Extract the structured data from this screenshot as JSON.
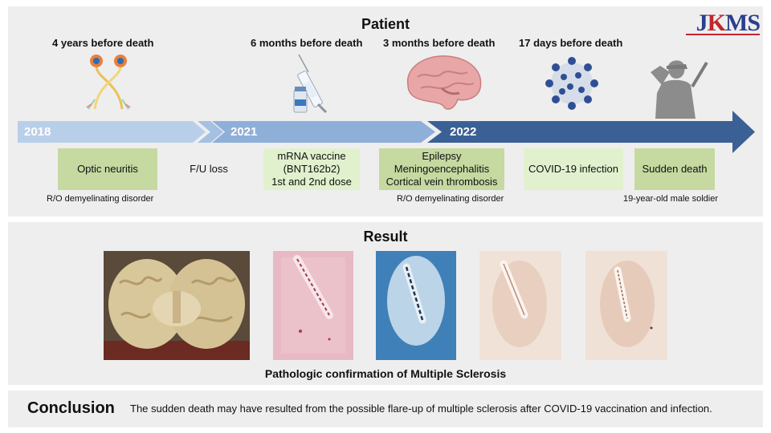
{
  "logo": {
    "part1": "J",
    "part2": "K",
    "part3": "MS"
  },
  "patient": {
    "title": "Patient",
    "time_labels": [
      "4 years before death",
      "6 months before death",
      "3 months before death",
      "17 days before death"
    ],
    "years": [
      "2018",
      "2021",
      "2022"
    ],
    "events": [
      {
        "text": "Optic neuritis",
        "note": "R/O demyelinating disorder"
      },
      {
        "text": "F/U loss"
      },
      {
        "text": "mRNA vaccine\n(BNT162b2)\n1st and 2nd dose"
      },
      {
        "text": "Epilepsy\nMeningoencephalitis\nCortical vein thrombosis",
        "note": "R/O demyelinating disorder"
      },
      {
        "text": "COVID-19 infection"
      },
      {
        "text": "Sudden death",
        "note": "19-year-old male soldier"
      }
    ],
    "icons": [
      "optic-nerve-icon",
      "syringe-vial-icon",
      "brain-icon",
      "virus-icon",
      "saluting-soldier-icon"
    ]
  },
  "result": {
    "title": "Result",
    "caption": "Pathologic confirmation of Multiple Sclerosis",
    "images": [
      "gross-brain-section-image",
      "he-stain-image",
      "lfb-stain-image",
      "ihc-stain-image-1",
      "ihc-stain-image-2"
    ]
  },
  "conclusion": {
    "title": "Conclusion",
    "text": "The sudden death may have resulted from the possible flare-up of multiple sclerosis after COVID-19 vaccination and infection."
  },
  "colors": {
    "arrow_light": "#b9cfe9",
    "arrow_mid": "#8eafd8",
    "arrow_dark": "#3b6096",
    "box_dark": "#c5d9a1",
    "box_light": "#e1f1cd",
    "logo_blue": "#2b3f8c",
    "logo_red": "#c0272d"
  }
}
